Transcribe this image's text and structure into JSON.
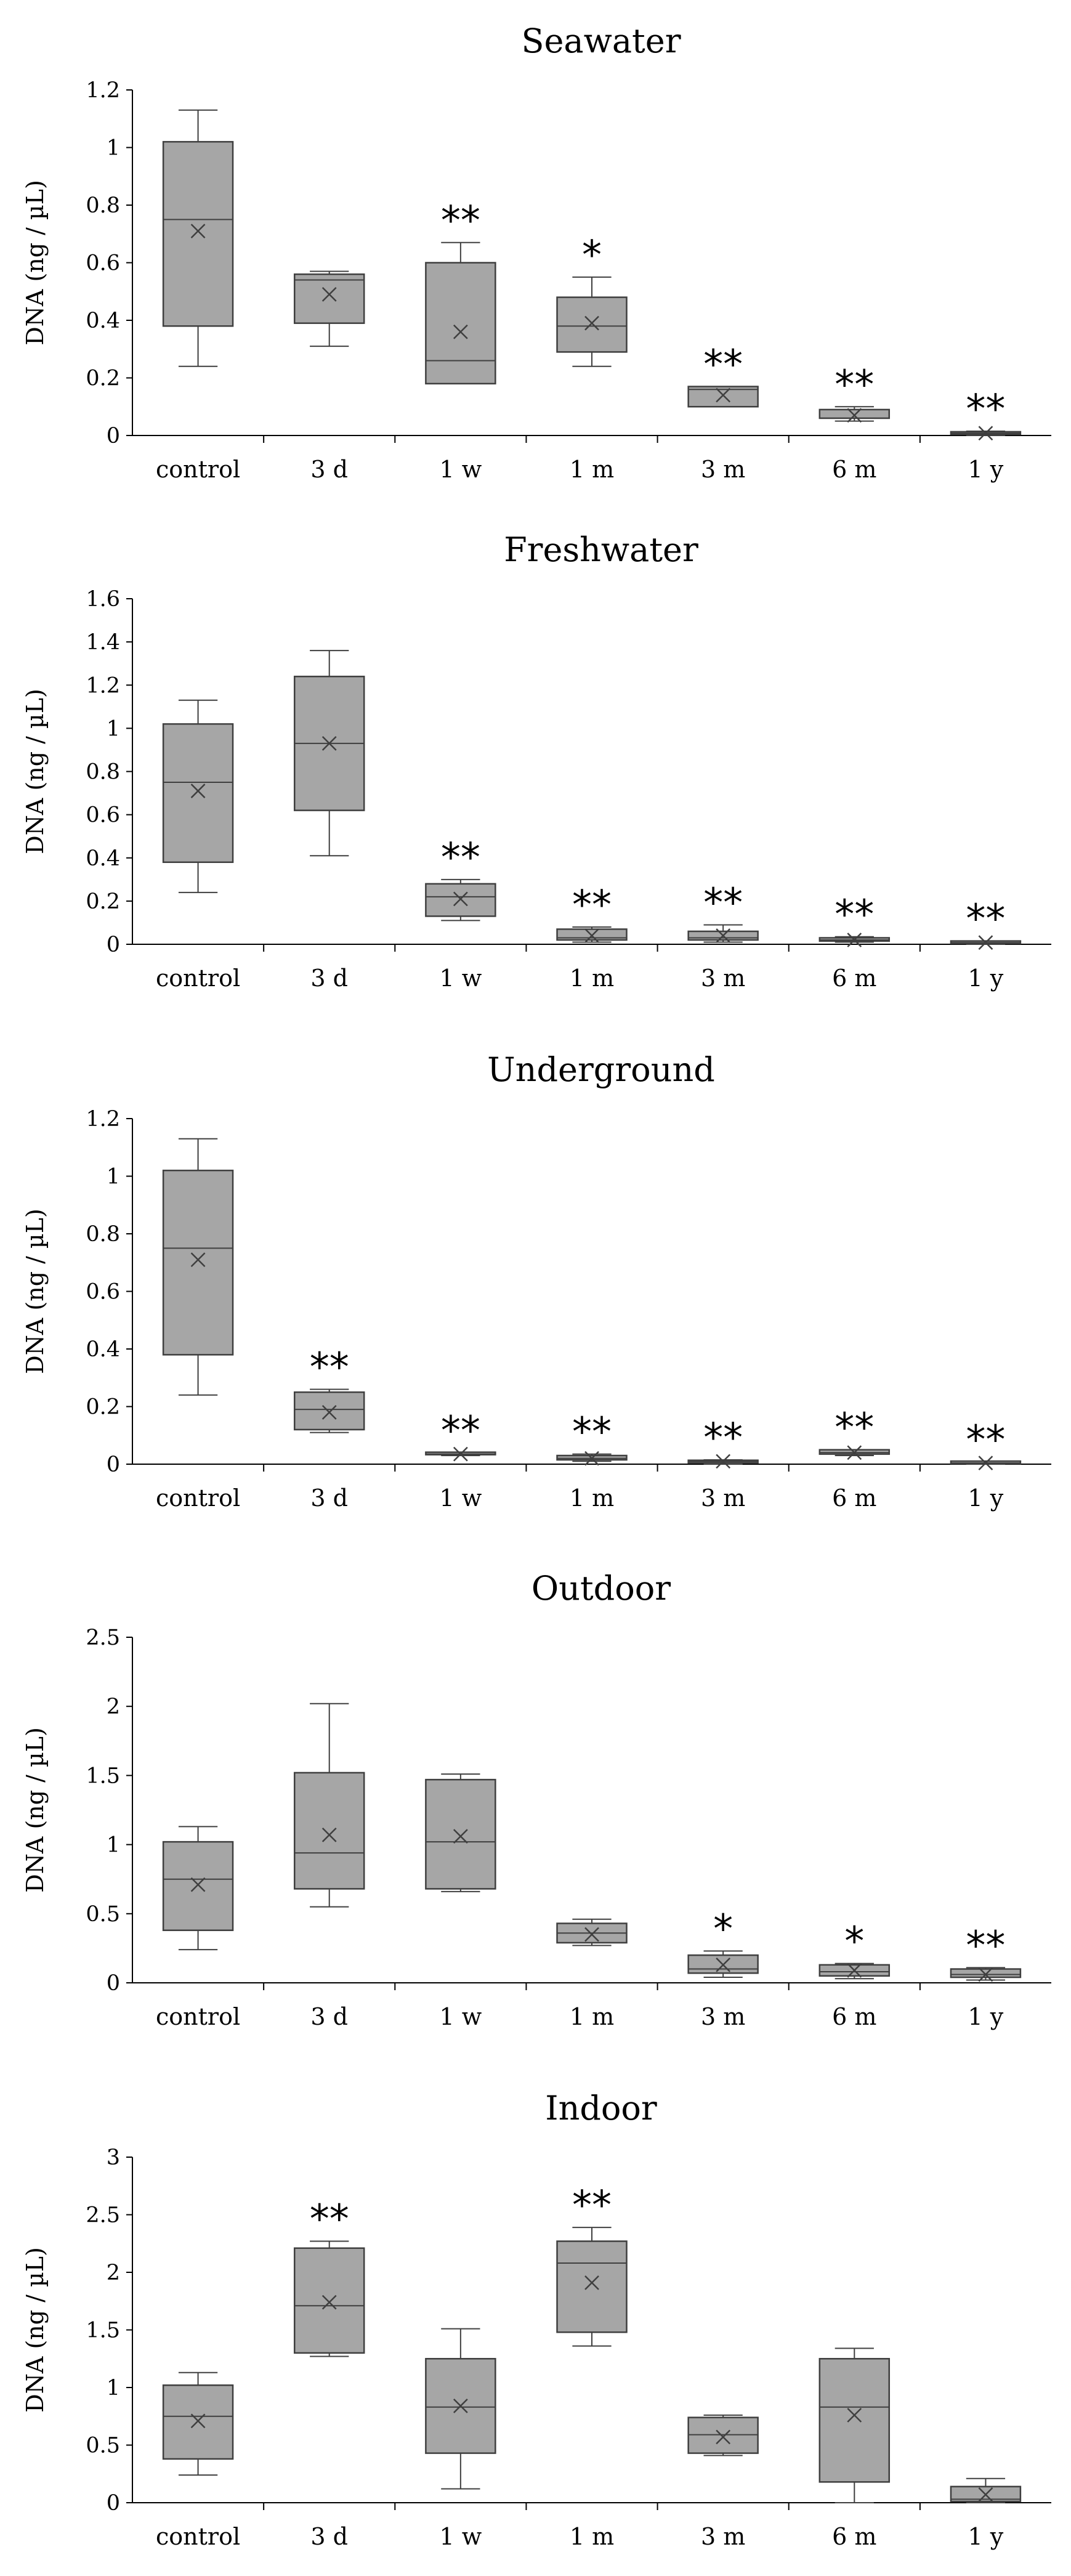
{
  "colors": {
    "box_fill": "#a6a6a6",
    "stroke": "#3f3f3f",
    "axis": "#000000"
  },
  "chart_data": [
    {
      "type": "box",
      "title": "Seawater",
      "ylabel": "DNA (ng / µL)",
      "ylim": [
        0,
        1.2
      ],
      "yticks": [
        0,
        0.2,
        0.4,
        0.6,
        0.8,
        1,
        1.2
      ],
      "ytick_labels": [
        "0",
        "0.2",
        "0.4",
        "0.6",
        "0.8",
        "1",
        "1.2"
      ],
      "categories": [
        "control",
        "3 d",
        "1 w",
        "1 m",
        "3 m",
        "6 m",
        "1 y"
      ],
      "boxes": [
        {
          "min": 0.24,
          "q1": 0.38,
          "median": 0.75,
          "q3": 1.02,
          "max": 1.13,
          "mean": 0.71,
          "sig": ""
        },
        {
          "min": 0.31,
          "q1": 0.39,
          "median": 0.54,
          "q3": 0.56,
          "max": 0.57,
          "mean": 0.49,
          "sig": ""
        },
        {
          "min": 0.18,
          "q1": 0.18,
          "median": 0.26,
          "q3": 0.6,
          "max": 0.67,
          "mean": 0.36,
          "sig": "**"
        },
        {
          "min": 0.24,
          "q1": 0.29,
          "median": 0.38,
          "q3": 0.48,
          "max": 0.55,
          "mean": 0.39,
          "sig": "*"
        },
        {
          "min": 0.1,
          "q1": 0.1,
          "median": 0.16,
          "q3": 0.17,
          "max": 0.17,
          "mean": 0.14,
          "sig": "**"
        },
        {
          "min": 0.05,
          "q1": 0.06,
          "median": 0.06,
          "q3": 0.09,
          "max": 0.1,
          "mean": 0.07,
          "sig": "**"
        },
        {
          "min": 0.0,
          "q1": 0.004,
          "median": 0.008,
          "q3": 0.013,
          "max": 0.015,
          "mean": 0.008,
          "sig": "**"
        }
      ]
    },
    {
      "type": "box",
      "title": "Freshwater",
      "ylabel": "DNA (ng / µL)",
      "ylim": [
        0,
        1.6
      ],
      "yticks": [
        0,
        0.2,
        0.4,
        0.6,
        0.8,
        1,
        1.2,
        1.4,
        1.6
      ],
      "ytick_labels": [
        "0",
        "0.2",
        "0.4",
        "0.6",
        "0.8",
        "1",
        "1.2",
        "1.4",
        "1.6"
      ],
      "categories": [
        "control",
        "3 d",
        "1 w",
        "1 m",
        "3 m",
        "6 m",
        "1 y"
      ],
      "boxes": [
        {
          "min": 0.24,
          "q1": 0.38,
          "median": 0.75,
          "q3": 1.02,
          "max": 1.13,
          "mean": 0.71,
          "sig": ""
        },
        {
          "min": 0.41,
          "q1": 0.62,
          "median": 0.93,
          "q3": 1.24,
          "max": 1.36,
          "mean": 0.93,
          "sig": ""
        },
        {
          "min": 0.11,
          "q1": 0.13,
          "median": 0.22,
          "q3": 0.28,
          "max": 0.3,
          "mean": 0.21,
          "sig": "**"
        },
        {
          "min": 0.01,
          "q1": 0.02,
          "median": 0.03,
          "q3": 0.07,
          "max": 0.08,
          "mean": 0.04,
          "sig": "**"
        },
        {
          "min": 0.01,
          "q1": 0.02,
          "median": 0.03,
          "q3": 0.06,
          "max": 0.09,
          "mean": 0.04,
          "sig": "**"
        },
        {
          "min": 0.01,
          "q1": 0.015,
          "median": 0.02,
          "q3": 0.03,
          "max": 0.035,
          "mean": 0.02,
          "sig": "**"
        },
        {
          "min": 0.0,
          "q1": 0.004,
          "median": 0.008,
          "q3": 0.012,
          "max": 0.015,
          "mean": 0.008,
          "sig": "**"
        }
      ]
    },
    {
      "type": "box",
      "title": "Underground",
      "ylabel": "DNA (ng / µL)",
      "ylim": [
        0,
        1.2
      ],
      "yticks": [
        0,
        0.2,
        0.4,
        0.6,
        0.8,
        1,
        1.2
      ],
      "ytick_labels": [
        "0",
        "0.2",
        "0.4",
        "0.6",
        "0.8",
        "1",
        "1.2"
      ],
      "categories": [
        "control",
        "3 d",
        "1 w",
        "1 m",
        "3 m",
        "6 m",
        "1 y"
      ],
      "boxes": [
        {
          "min": 0.24,
          "q1": 0.38,
          "median": 0.75,
          "q3": 1.02,
          "max": 1.13,
          "mean": 0.71,
          "sig": ""
        },
        {
          "min": 0.11,
          "q1": 0.12,
          "median": 0.19,
          "q3": 0.25,
          "max": 0.26,
          "mean": 0.18,
          "sig": "**"
        },
        {
          "min": 0.03,
          "q1": 0.033,
          "median": 0.035,
          "q3": 0.038,
          "max": 0.04,
          "mean": 0.035,
          "sig": "**"
        },
        {
          "min": 0.01,
          "q1": 0.015,
          "median": 0.02,
          "q3": 0.03,
          "max": 0.035,
          "mean": 0.02,
          "sig": "**"
        },
        {
          "min": 0.0,
          "q1": 0.005,
          "median": 0.01,
          "q3": 0.012,
          "max": 0.015,
          "mean": 0.01,
          "sig": "**"
        },
        {
          "min": 0.03,
          "q1": 0.035,
          "median": 0.04,
          "q3": 0.05,
          "max": 0.05,
          "mean": 0.04,
          "sig": "**"
        },
        {
          "min": 0.0,
          "q1": 0.002,
          "median": 0.004,
          "q3": 0.006,
          "max": 0.008,
          "mean": 0.004,
          "sig": "**"
        }
      ]
    },
    {
      "type": "box",
      "title": "Outdoor",
      "ylabel": "DNA (ng / µL)",
      "ylim": [
        0,
        2.5
      ],
      "yticks": [
        0,
        0.5,
        1,
        1.5,
        2,
        2.5
      ],
      "ytick_labels": [
        "0",
        "0.5",
        "1",
        "1.5",
        "2",
        "2.5"
      ],
      "categories": [
        "control",
        "3 d",
        "1 w",
        "1 m",
        "3 m",
        "6 m",
        "1 y"
      ],
      "boxes": [
        {
          "min": 0.24,
          "q1": 0.38,
          "median": 0.75,
          "q3": 1.02,
          "max": 1.13,
          "mean": 0.71,
          "sig": ""
        },
        {
          "min": 0.55,
          "q1": 0.68,
          "median": 0.94,
          "q3": 1.52,
          "max": 2.02,
          "mean": 1.07,
          "sig": ""
        },
        {
          "min": 0.66,
          "q1": 0.68,
          "median": 1.02,
          "q3": 1.47,
          "max": 1.51,
          "mean": 1.06,
          "sig": ""
        },
        {
          "min": 0.27,
          "q1": 0.29,
          "median": 0.36,
          "q3": 0.43,
          "max": 0.46,
          "mean": 0.35,
          "sig": ""
        },
        {
          "min": 0.04,
          "q1": 0.07,
          "median": 0.1,
          "q3": 0.2,
          "max": 0.23,
          "mean": 0.13,
          "sig": "*"
        },
        {
          "min": 0.03,
          "q1": 0.05,
          "median": 0.08,
          "q3": 0.13,
          "max": 0.14,
          "mean": 0.09,
          "sig": "*"
        },
        {
          "min": 0.02,
          "q1": 0.04,
          "median": 0.06,
          "q3": 0.1,
          "max": 0.11,
          "mean": 0.06,
          "sig": "**"
        }
      ]
    },
    {
      "type": "box",
      "title": "Indoor",
      "ylabel": "DNA (ng / µL)",
      "ylim": [
        0,
        3
      ],
      "yticks": [
        0,
        0.5,
        1,
        1.5,
        2,
        2.5,
        3
      ],
      "ytick_labels": [
        "0",
        "0.5",
        "1",
        "1.5",
        "2",
        "2.5",
        "3"
      ],
      "categories": [
        "control",
        "3 d",
        "1 w",
        "1 m",
        "3 m",
        "6 m",
        "1 y"
      ],
      "boxes": [
        {
          "min": 0.24,
          "q1": 0.38,
          "median": 0.75,
          "q3": 1.02,
          "max": 1.13,
          "mean": 0.71,
          "sig": ""
        },
        {
          "min": 1.27,
          "q1": 1.3,
          "median": 1.71,
          "q3": 2.21,
          "max": 2.27,
          "mean": 1.74,
          "sig": "**"
        },
        {
          "min": 0.12,
          "q1": 0.43,
          "median": 0.83,
          "q3": 1.25,
          "max": 1.51,
          "mean": 0.84,
          "sig": ""
        },
        {
          "min": 1.36,
          "q1": 1.48,
          "median": 2.08,
          "q3": 2.27,
          "max": 2.39,
          "mean": 1.91,
          "sig": "**"
        },
        {
          "min": 0.41,
          "q1": 0.43,
          "median": 0.59,
          "q3": 0.74,
          "max": 0.76,
          "mean": 0.57,
          "sig": ""
        },
        {
          "min": 0.0,
          "q1": 0.18,
          "median": 0.83,
          "q3": 1.25,
          "max": 1.34,
          "mean": 0.76,
          "sig": ""
        },
        {
          "min": 0.0,
          "q1": 0.01,
          "median": 0.03,
          "q3": 0.14,
          "max": 0.21,
          "mean": 0.07,
          "sig": ""
        }
      ]
    }
  ]
}
